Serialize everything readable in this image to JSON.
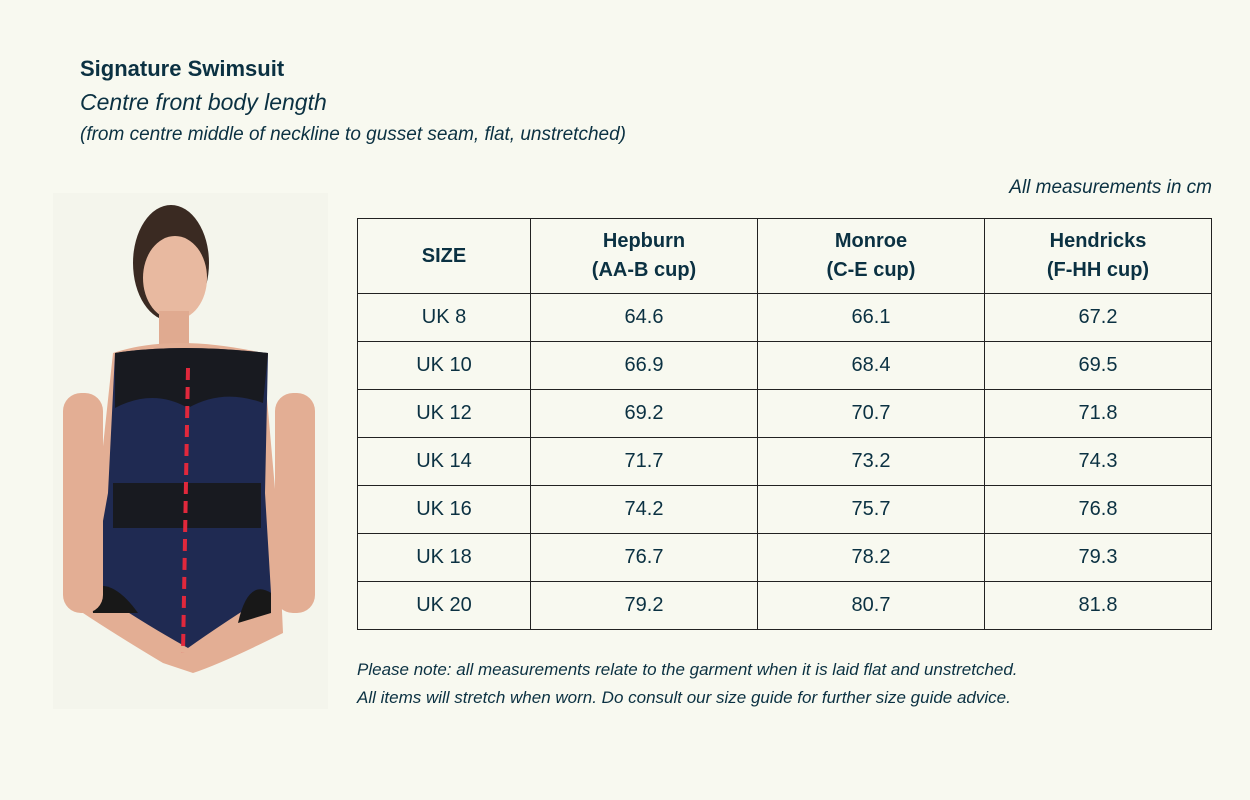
{
  "header": {
    "title": "Signature Swimsuit",
    "subtitle": "Centre front body length",
    "description": "(from centre middle of neckline to gusset seam, flat, unstretched)"
  },
  "units_note": "All measurements in cm",
  "table": {
    "columns": [
      {
        "line1": "SIZE",
        "line2": ""
      },
      {
        "line1": "Hepburn",
        "line2": "(AA-B cup)"
      },
      {
        "line1": "Monroe",
        "line2": "(C-E cup)"
      },
      {
        "line1": "Hendricks",
        "line2": "(F-HH cup)"
      }
    ],
    "rows": [
      [
        "UK 8",
        "64.6",
        "66.1",
        "67.2"
      ],
      [
        "UK 10",
        "66.9",
        "68.4",
        "69.5"
      ],
      [
        "UK 12",
        "69.2",
        "70.7",
        "71.8"
      ],
      [
        "UK 14",
        "71.7",
        "73.2",
        "74.3"
      ],
      [
        "UK 16",
        "74.2",
        "75.7",
        "76.8"
      ],
      [
        "UK 18",
        "76.7",
        "78.2",
        "79.3"
      ],
      [
        "UK 20",
        "79.2",
        "80.7",
        "81.8"
      ]
    ]
  },
  "footer": {
    "line1": "Please note: all measurements relate to the garment when it is laid flat and unstretched.",
    "line2": "All items will stretch when worn. Do consult our size guide for further size guide advice."
  },
  "colors": {
    "text": "#0b3142",
    "background": "#f8f9f0",
    "swimsuit": "#1f2a52",
    "measure_line": "#e0283c"
  }
}
